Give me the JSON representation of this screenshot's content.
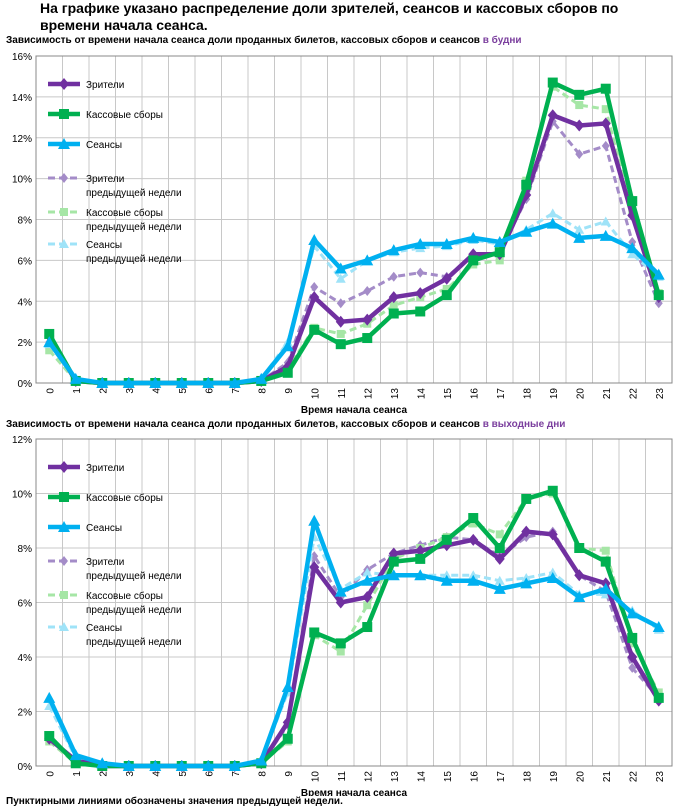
{
  "heading": "На графике указано распределение доли зрителей, сеансов и кассовых сборов по времени начала сеанса.",
  "footnote": "Пунктирными линиями обозначены значения предыдущей недели.",
  "chart_data": [
    {
      "type": "line",
      "title_main": "Зависимость от времени начала сеанса доли проданных билетов, кассовых сборов и сеансов",
      "title_highlight": "в будни",
      "xlabel": "Время начала сеанса",
      "ylabel": "",
      "ylim": [
        0,
        16
      ],
      "yticks": [
        0,
        2,
        4,
        6,
        8,
        10,
        12,
        14,
        16
      ],
      "ytick_labels": [
        "0%",
        "2%",
        "4%",
        "6%",
        "8%",
        "10%",
        "12%",
        "14%",
        "16%"
      ],
      "categories": [
        "0",
        "1",
        "2",
        "3",
        "4",
        "5",
        "6",
        "7",
        "8",
        "9",
        "10",
        "11",
        "12",
        "13",
        "14",
        "15",
        "16",
        "17",
        "18",
        "19",
        "20",
        "21",
        "22",
        "23"
      ],
      "series": [
        {
          "name": "Зрители",
          "color": "#7030A0",
          "dashed": false,
          "marker": "diamond",
          "values": [
            2.3,
            0.1,
            0,
            0,
            0,
            0,
            0,
            0,
            0.1,
            0.8,
            4.2,
            3.0,
            3.1,
            4.2,
            4.4,
            5.1,
            6.3,
            6.3,
            9.2,
            13.1,
            12.6,
            12.7,
            8.2,
            4.2
          ]
        },
        {
          "name": "Кассовые сборы",
          "color": "#00B050",
          "dashed": false,
          "marker": "square",
          "values": [
            2.4,
            0.1,
            0,
            0,
            0,
            0,
            0,
            0,
            0.1,
            0.5,
            2.6,
            1.9,
            2.2,
            3.4,
            3.5,
            4.3,
            6.0,
            6.4,
            9.7,
            14.7,
            14.1,
            14.4,
            8.9,
            4.3
          ]
        },
        {
          "name": "Сеансы",
          "color": "#00B0F0",
          "dashed": false,
          "marker": "triangle",
          "values": [
            2.0,
            0.2,
            0,
            0,
            0,
            0,
            0,
            0,
            0.2,
            1.8,
            7.0,
            5.6,
            6.0,
            6.5,
            6.8,
            6.8,
            7.1,
            6.9,
            7.4,
            7.8,
            7.1,
            7.2,
            6.6,
            5.3
          ]
        },
        {
          "name": "Зрители предыдущей недели",
          "color": "#A48CC8",
          "dashed": true,
          "marker": "diamond",
          "values": [
            2.0,
            0.1,
            0,
            0,
            0,
            0,
            0,
            0,
            0.1,
            1.0,
            4.7,
            3.9,
            4.5,
            5.2,
            5.4,
            5.2,
            6.2,
            6.4,
            9.0,
            12.8,
            11.2,
            11.6,
            6.9,
            3.9
          ]
        },
        {
          "name": "Кассовые сборы предыдущей недели",
          "color": "#A6E6A6",
          "dashed": true,
          "marker": "square",
          "values": [
            1.6,
            0.1,
            0,
            0,
            0,
            0,
            0,
            0,
            0.1,
            0.7,
            2.7,
            2.4,
            2.9,
            3.8,
            4.2,
            4.6,
            5.8,
            6.0,
            9.9,
            14.5,
            13.6,
            13.4,
            8.3,
            4.4
          ]
        },
        {
          "name": "Сеансы предыдущей недели",
          "color": "#9FE3F8",
          "dashed": true,
          "marker": "triangle",
          "values": [
            1.9,
            0.2,
            0,
            0,
            0,
            0,
            0,
            0,
            0.2,
            2.0,
            6.7,
            5.1,
            6.0,
            6.4,
            6.6,
            6.7,
            7.0,
            6.8,
            7.5,
            8.3,
            7.5,
            7.9,
            6.3,
            5.2
          ]
        }
      ],
      "legend_labels": [
        [
          "Зрители"
        ],
        [
          "Кассовые сборы"
        ],
        [
          "Сеансы"
        ],
        [
          "Зрители",
          "предыдущей недели"
        ],
        [
          "Кассовые сборы",
          "предыдущей недели"
        ],
        [
          "Сеансы",
          "предыдущей недели"
        ]
      ],
      "legend": "top-left"
    },
    {
      "type": "line",
      "title_main": "Зависимость от времени начала сеанса доли проданных билетов, кассовых сборов и сеансов",
      "title_highlight": "в выходные дни",
      "xlabel": "Время начала сеанса",
      "ylabel": "",
      "ylim": [
        0,
        12
      ],
      "yticks": [
        0,
        2,
        4,
        6,
        8,
        10,
        12
      ],
      "ytick_labels": [
        "0%",
        "2%",
        "4%",
        "6%",
        "8%",
        "10%",
        "12%"
      ],
      "categories": [
        "0",
        "1",
        "2",
        "3",
        "4",
        "5",
        "6",
        "7",
        "8",
        "9",
        "10",
        "11",
        "12",
        "13",
        "14",
        "15",
        "16",
        "17",
        "18",
        "19",
        "20",
        "21",
        "22",
        "23"
      ],
      "series": [
        {
          "name": "Зрители",
          "color": "#7030A0",
          "dashed": false,
          "marker": "diamond",
          "values": [
            1.0,
            0.2,
            0,
            0,
            0,
            0,
            0,
            0,
            0.1,
            1.6,
            7.3,
            6.0,
            6.2,
            7.8,
            7.9,
            8.1,
            8.3,
            7.6,
            8.6,
            8.5,
            7.0,
            6.7,
            4.0,
            2.4
          ]
        },
        {
          "name": "Кассовые сборы",
          "color": "#00B050",
          "dashed": false,
          "marker": "square",
          "values": [
            1.1,
            0.1,
            0,
            0,
            0,
            0,
            0,
            0,
            0.1,
            1.0,
            4.9,
            4.5,
            5.1,
            7.5,
            7.6,
            8.3,
            9.1,
            8.0,
            9.8,
            10.1,
            8.0,
            7.5,
            4.7,
            2.5
          ]
        },
        {
          "name": "Сеансы",
          "color": "#00B0F0",
          "dashed": false,
          "marker": "triangle",
          "values": [
            2.5,
            0.4,
            0.1,
            0,
            0,
            0,
            0,
            0,
            0.2,
            2.9,
            9.0,
            6.4,
            6.8,
            7.0,
            7.0,
            6.8,
            6.8,
            6.5,
            6.7,
            6.9,
            6.2,
            6.5,
            5.6,
            5.1
          ]
        },
        {
          "name": "Зрители предыдущей недели",
          "color": "#A48CC8",
          "dashed": true,
          "marker": "diamond",
          "values": [
            1.0,
            0.2,
            0,
            0,
            0,
            0,
            0,
            0,
            0.1,
            1.5,
            7.7,
            6.2,
            7.2,
            7.8,
            8.1,
            8.4,
            8.3,
            7.7,
            8.4,
            8.6,
            7.0,
            6.4,
            3.6,
            2.5
          ]
        },
        {
          "name": "Кассовые сборы предыдущей недели",
          "color": "#A6E6A6",
          "dashed": true,
          "marker": "square",
          "values": [
            0.9,
            0.1,
            0,
            0,
            0,
            0,
            0,
            0,
            0.1,
            0.9,
            4.8,
            4.2,
            5.9,
            7.6,
            8.0,
            8.4,
            8.9,
            8.5,
            9.8,
            10.0,
            8.0,
            7.9,
            4.5,
            2.7
          ]
        },
        {
          "name": "Сеансы предыдущей недели",
          "color": "#9FE3F8",
          "dashed": true,
          "marker": "triangle",
          "values": [
            2.2,
            0.3,
            0.1,
            0,
            0,
            0,
            0,
            0,
            0.2,
            2.7,
            8.4,
            6.5,
            7.1,
            7.0,
            7.0,
            7.0,
            7.0,
            6.8,
            6.9,
            7.1,
            6.3,
            6.3,
            5.7,
            5.0
          ]
        }
      ],
      "legend_labels": [
        [
          "Зрители"
        ],
        [
          "Кассовые сборы"
        ],
        [
          "Сеансы"
        ],
        [
          "Зрители",
          "предыдущей недели"
        ],
        [
          "Кассовые сборы",
          "предыдущей недели"
        ],
        [
          "Сеансы",
          "предыдущей недели"
        ]
      ],
      "legend": "top-left"
    }
  ]
}
